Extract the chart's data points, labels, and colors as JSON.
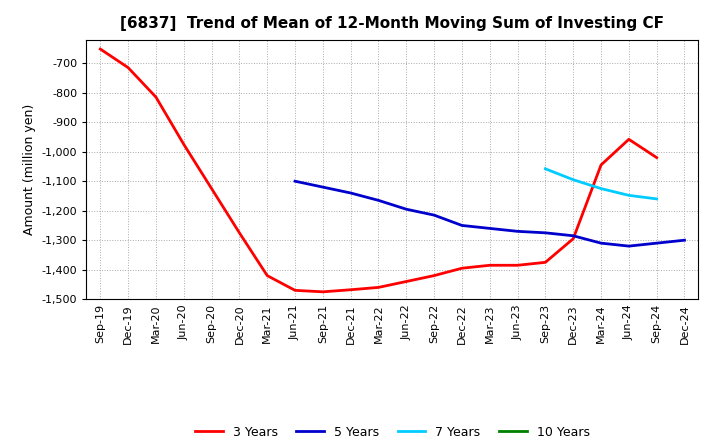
{
  "title": "[6837]  Trend of Mean of 12-Month Moving Sum of Investing CF",
  "ylabel": "Amount (million yen)",
  "background_color": "#ffffff",
  "grid_color": "#aaaaaa",
  "ylim": [
    -1500,
    -620
  ],
  "yticks": [
    -1500,
    -1400,
    -1300,
    -1200,
    -1100,
    -1000,
    -900,
    -800,
    -700
  ],
  "x_labels": [
    "Sep-19",
    "Dec-19",
    "Mar-20",
    "Jun-20",
    "Sep-20",
    "Dec-20",
    "Mar-21",
    "Jun-21",
    "Sep-21",
    "Dec-21",
    "Mar-22",
    "Jun-22",
    "Sep-22",
    "Dec-22",
    "Mar-23",
    "Jun-23",
    "Sep-23",
    "Dec-23",
    "Mar-24",
    "Jun-24",
    "Sep-24",
    "Dec-24"
  ],
  "series_3yr": {
    "label": "3 Years",
    "color": "#ff0000",
    "x_indices": [
      0,
      1,
      2,
      3,
      4,
      5,
      6,
      7,
      8,
      9,
      10,
      11,
      12,
      13,
      14,
      15,
      16,
      17,
      18,
      19,
      20
    ],
    "y_values": [
      -652,
      -715,
      -815,
      -975,
      -1125,
      -1275,
      -1420,
      -1470,
      -1475,
      -1468,
      -1460,
      -1440,
      -1420,
      -1395,
      -1385,
      -1385,
      -1375,
      -1295,
      -1045,
      -958,
      -1020
    ]
  },
  "series_5yr": {
    "label": "5 Years",
    "color": "#0000cc",
    "x_indices": [
      7,
      8,
      9,
      10,
      11,
      12,
      13,
      14,
      15,
      16,
      17,
      18,
      19,
      20,
      21
    ],
    "y_values": [
      -1100,
      -1120,
      -1140,
      -1165,
      -1195,
      -1215,
      -1250,
      -1260,
      -1270,
      -1275,
      -1285,
      -1310,
      -1320,
      -1310,
      -1300
    ]
  },
  "series_7yr": {
    "label": "7 Years",
    "color": "#00ccff",
    "x_indices": [
      16,
      17,
      18,
      19,
      20
    ],
    "y_values": [
      -1058,
      -1095,
      -1125,
      -1148,
      -1160
    ]
  },
  "series_10yr": {
    "label": "10 Years",
    "color": "#008000",
    "x_indices": [],
    "y_values": []
  },
  "legend_colors": {
    "3 Years": "#ff0000",
    "5 Years": "#0000cc",
    "7 Years": "#00ccff",
    "10 Years": "#008000"
  },
  "title_fontsize": 11,
  "ylabel_fontsize": 9,
  "tick_fontsize": 8
}
